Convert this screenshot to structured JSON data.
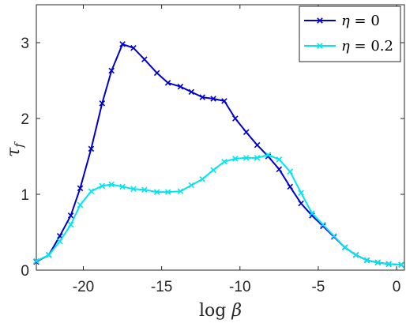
{
  "chart_data": {
    "type": "line",
    "xlabel": "log β",
    "ylabel": "τ_f",
    "xlabel_parts": {
      "fn": "log",
      "sym": "β"
    },
    "ylabel_parts": {
      "sym": "τ",
      "sub": "f"
    },
    "xlim": [
      -23,
      0.5
    ],
    "ylim": [
      0,
      3.5
    ],
    "xticks": [
      -20,
      -15,
      -10,
      -5,
      0
    ],
    "xtick_labels": [
      "-20",
      "-15",
      "-10",
      "-5",
      "0"
    ],
    "yticks": [
      0,
      1,
      2,
      3
    ],
    "ytick_labels": [
      "0",
      "1",
      "2",
      "3"
    ],
    "grid": false,
    "legend_position": "top-right",
    "marker": "x",
    "series": [
      {
        "name": "η = 0",
        "name_parts": {
          "sym": "η",
          "rest": " = 0"
        },
        "color": "#0000cc",
        "x": [
          -23,
          -22.2,
          -21.5,
          -20.8,
          -20.2,
          -19.5,
          -18.8,
          -18.2,
          -17.5,
          -16.8,
          -16.1,
          -15.3,
          -14.6,
          -13.8,
          -13.1,
          -12.4,
          -11.7,
          -11.0,
          -10.3,
          -9.6,
          -8.9,
          -8.2,
          -7.5,
          -6.8,
          -6.1,
          -5.4,
          -4.7,
          -4.0,
          -3.3,
          -2.6,
          -1.9,
          -1.2,
          -0.5,
          0.3
        ],
        "y": [
          0.11,
          0.2,
          0.45,
          0.72,
          1.08,
          1.6,
          2.2,
          2.63,
          2.98,
          2.93,
          2.78,
          2.6,
          2.47,
          2.42,
          2.35,
          2.28,
          2.26,
          2.23,
          2.0,
          1.82,
          1.65,
          1.5,
          1.33,
          1.1,
          0.88,
          0.72,
          0.58,
          0.44,
          0.3,
          0.2,
          0.13,
          0.1,
          0.08,
          0.07
        ]
      },
      {
        "name": "η = 0.2",
        "name_parts": {
          "sym": "η",
          "rest": " = 0.2"
        },
        "color": "#00e5ee",
        "x": [
          -23,
          -22.2,
          -21.5,
          -20.8,
          -20.2,
          -19.5,
          -18.8,
          -18.2,
          -17.5,
          -16.8,
          -16.1,
          -15.3,
          -14.6,
          -13.8,
          -13.1,
          -12.4,
          -11.7,
          -11.0,
          -10.3,
          -9.6,
          -8.9,
          -8.2,
          -7.5,
          -6.8,
          -6.1,
          -5.4,
          -4.7,
          -4.0,
          -3.3,
          -2.6,
          -1.9,
          -1.2,
          -0.5,
          0.3
        ],
        "y": [
          0.12,
          0.2,
          0.38,
          0.6,
          0.86,
          1.04,
          1.11,
          1.13,
          1.1,
          1.07,
          1.06,
          1.03,
          1.03,
          1.04,
          1.12,
          1.2,
          1.32,
          1.43,
          1.47,
          1.48,
          1.48,
          1.52,
          1.46,
          1.3,
          1.02,
          0.75,
          0.6,
          0.45,
          0.3,
          0.2,
          0.13,
          0.1,
          0.08,
          0.07
        ]
      }
    ]
  }
}
